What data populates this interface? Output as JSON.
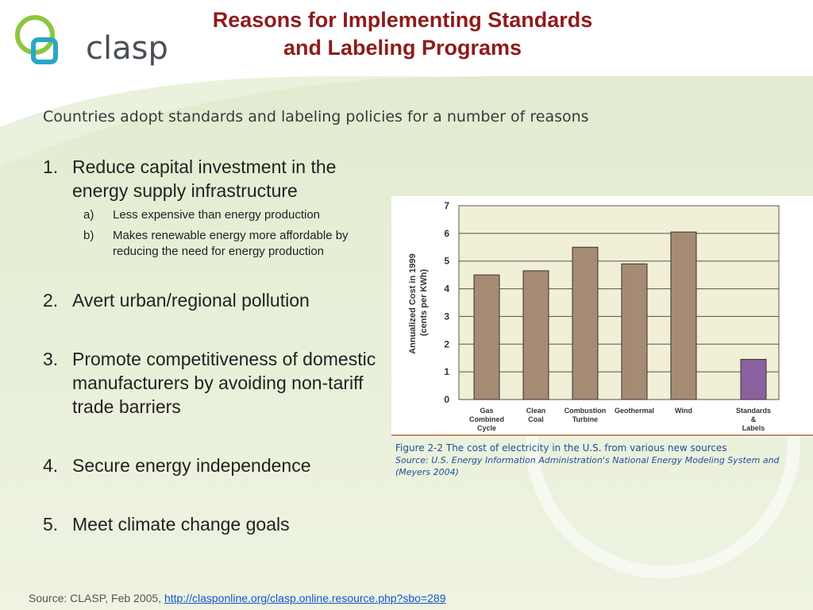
{
  "brand": {
    "logo_text": "clasp"
  },
  "header": {
    "title_line1": "Reasons for Implementing Standards",
    "title_line2": "and Labeling Programs"
  },
  "subtitle": "Countries adopt standards and labeling policies for a number of reasons",
  "reasons": [
    {
      "num": "1.",
      "text": "Reduce capital investment in the energy supply infrastructure",
      "subs": [
        {
          "num": "a)",
          "text": "Less expensive than energy production"
        },
        {
          "num": "b)",
          "text": "Makes renewable energy more affordable by reducing the need for energy production"
        }
      ]
    },
    {
      "num": "2.",
      "text": "Avert urban/regional pollution"
    },
    {
      "num": "3.",
      "text": "Promote competitiveness of domestic manufacturers by avoiding non-tariff trade barriers"
    },
    {
      "num": "4.",
      "text": "Secure energy independence"
    },
    {
      "num": "5.",
      "text": "Meet climate change goals"
    }
  ],
  "figure": {
    "caption_line1": "Figure 2-2  The cost of electricity in the U.S. from various new sources",
    "caption_line2": "Source: U.S. Energy Information Administration's National Energy Modeling System and (Meyers 2004)"
  },
  "footer": {
    "source_prefix": "Source: CLASP, Feb 2005, ",
    "source_link": "http://clasponline.org/clasp.online.resource.php?sbo=289"
  },
  "colors": {
    "title": "#8e1b1b",
    "bar_default": "#a68b74",
    "bar_highlight": "#8a62a0",
    "plot_bg": "#f1efd5",
    "caption": "#1f4e99",
    "logo_green": "#8cc63f",
    "logo_teal": "#29a8c6"
  },
  "chart_data": {
    "type": "bar",
    "categories": [
      "Gas Combined Cycle",
      "Clean Coal",
      "Combustion Turbine",
      "Geothermal",
      "Wind",
      "Standards & Labels"
    ],
    "category_lines": [
      [
        "Gas",
        "Combined",
        "Cycle"
      ],
      [
        "Clean",
        "Coal"
      ],
      [
        "Combustion",
        "Turbine"
      ],
      [
        "Geothermal"
      ],
      [
        "Wind"
      ],
      [
        "Standards",
        "&",
        "Labels"
      ]
    ],
    "values": [
      4.5,
      4.65,
      5.5,
      4.9,
      6.05,
      1.45
    ],
    "highlight_index": 5,
    "ylabel_line1": "Annualized Cost in 1999",
    "ylabel_line2": "(cents per KWh)",
    "ylim": [
      0,
      7
    ],
    "yticks": [
      0,
      1,
      2,
      3,
      4,
      5,
      6,
      7
    ],
    "grid": true
  }
}
